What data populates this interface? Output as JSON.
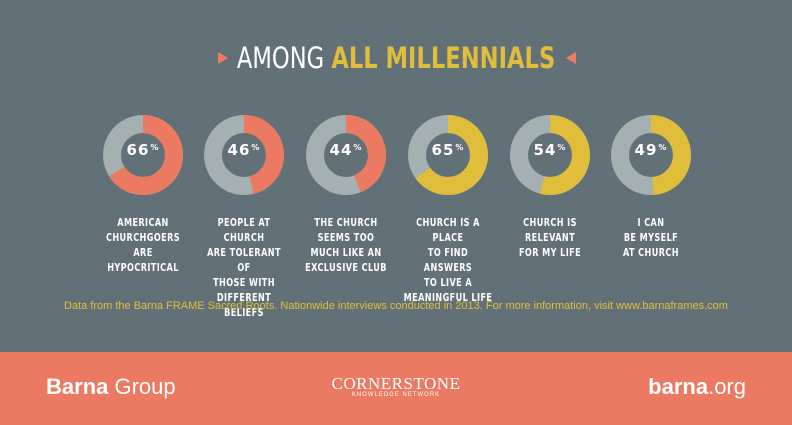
{
  "header": {
    "title_prefix": "AMONG",
    "title_accent": "ALL MILLENNIALS"
  },
  "colors": {
    "background": "#627178",
    "accent_coral": "#ec7a62",
    "accent_yellow": "#e1bd3c",
    "ring_gray": "#a4b0b1"
  },
  "chart_data": {
    "type": "donut",
    "percent_symbol": "%",
    "items": [
      {
        "value": 66,
        "value_label": "66",
        "label": "AMERICAN\nCHURCHGOERS\nARE\nHYPOCRITICAL",
        "color": "#ec7a62"
      },
      {
        "value": 46,
        "value_label": "46",
        "label": "PEOPLE AT CHURCH\nARE TOLERANT OF\nTHOSE WITH\nDIFFERENT BELIEFS",
        "color": "#ec7a62"
      },
      {
        "value": 44,
        "value_label": "44",
        "label": "THE CHURCH\nSEEMS TOO\nMUCH LIKE AN\nEXCLUSIVE CLUB",
        "color": "#ec7a62"
      },
      {
        "value": 65,
        "value_label": "65",
        "label": "CHURCH IS A PLACE\nTO FIND ANSWERS\nTO LIVE A\nMEANINGFUL LIFE",
        "color": "#e1bd3c"
      },
      {
        "value": 54,
        "value_label": "54",
        "label": "CHURCH IS\nRELEVANT\nFOR MY LIFE",
        "color": "#e1bd3c"
      },
      {
        "value": 49,
        "value_label": "49",
        "label": "I CAN\nBE MYSELF\nAT CHURCH",
        "color": "#e1bd3c"
      }
    ]
  },
  "footnote": "Data from the Barna FRAME Sacred Roots. Nationwide interviews conducted in 2013. For more information, visit www.barnaframes.com",
  "footer": {
    "left_bold": "Barna",
    "left_light": " Group",
    "center_main": "CORNERSTONE",
    "center_sub": "KNOWLEDGE NETWORK",
    "right_bold": "barna",
    "right_light": ".org"
  }
}
